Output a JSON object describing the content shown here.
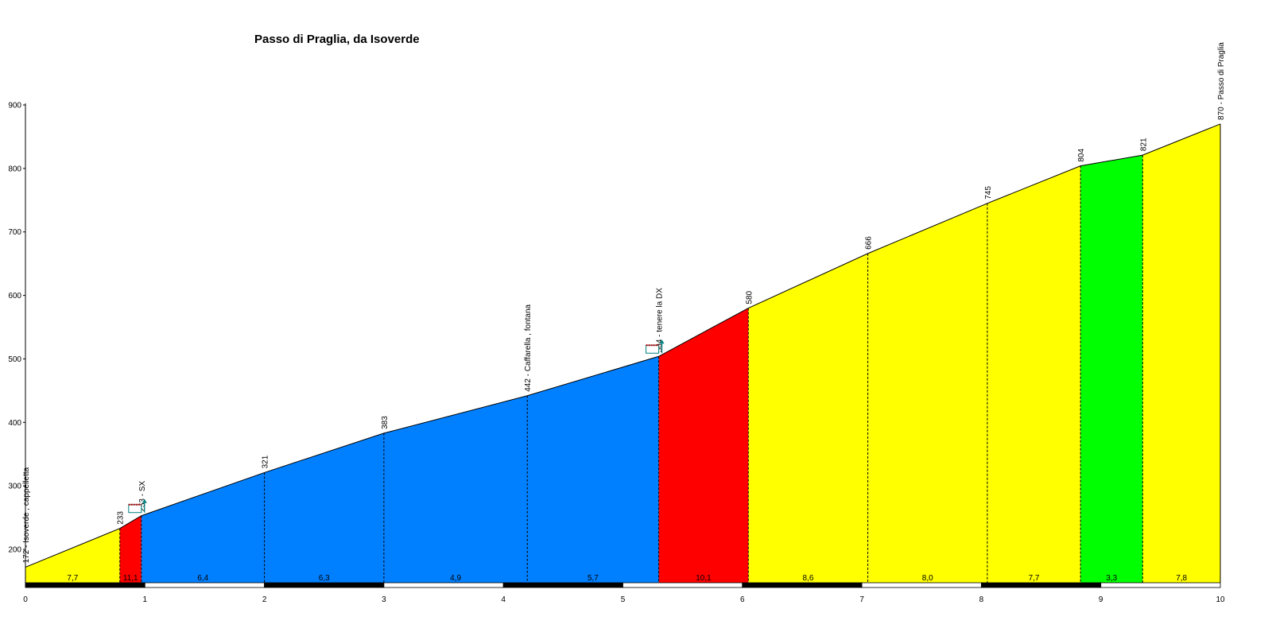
{
  "chart_data": {
    "type": "area",
    "title": "Passo di Praglia, da Isoverde",
    "xlabel": "",
    "ylabel": "",
    "xlim": [
      0,
      10
    ],
    "ylim": [
      160,
      900
    ],
    "x_ticks": [
      "0",
      "1",
      "2",
      "3",
      "4",
      "5",
      "6",
      "7",
      "8",
      "9",
      "10"
    ],
    "y_ticks": [
      "200",
      "300",
      "400",
      "500",
      "600",
      "700",
      "800",
      "900"
    ],
    "y_tick_values": [
      200,
      300,
      400,
      500,
      600,
      700,
      800,
      900
    ],
    "profile": [
      {
        "x": 0,
        "y": 172
      },
      {
        "x": 0.79,
        "y": 233
      },
      {
        "x": 0.97,
        "y": 253
      },
      {
        "x": 2.0,
        "y": 321
      },
      {
        "x": 3.0,
        "y": 383
      },
      {
        "x": 4.2,
        "y": 442
      },
      {
        "x": 5.3,
        "y": 504
      },
      {
        "x": 6.05,
        "y": 580
      },
      {
        "x": 7.05,
        "y": 666
      },
      {
        "x": 8.05,
        "y": 745
      },
      {
        "x": 8.83,
        "y": 804
      },
      {
        "x": 9.35,
        "y": 821
      },
      {
        "x": 10.0,
        "y": 870
      }
    ],
    "segments": [
      {
        "x0": 0,
        "x1": 0.79,
        "grade": "7,7",
        "color": "#ffff00"
      },
      {
        "x0": 0.79,
        "x1": 0.97,
        "grade": "11,1",
        "color": "#ff0000"
      },
      {
        "x0": 0.97,
        "x1": 2.0,
        "grade": "6,4",
        "color": "#0080ff"
      },
      {
        "x0": 2.0,
        "x1": 3.0,
        "grade": "6,3",
        "color": "#0080ff"
      },
      {
        "x0": 3.0,
        "x1": 4.2,
        "grade": "4,9",
        "color": "#0080ff"
      },
      {
        "x0": 4.2,
        "x1": 5.3,
        "grade": "5,7",
        "color": "#0080ff"
      },
      {
        "x0": 5.3,
        "x1": 6.05,
        "grade": "10,1",
        "color": "#ff0000"
      },
      {
        "x0": 6.05,
        "x1": 7.05,
        "grade": "8,6",
        "color": "#ffff00"
      },
      {
        "x0": 7.05,
        "x1": 8.05,
        "grade": "8,0",
        "color": "#ffff00"
      },
      {
        "x0": 8.05,
        "x1": 8.83,
        "grade": "7,7",
        "color": "#ffff00"
      },
      {
        "x0": 8.83,
        "x1": 9.35,
        "grade": "3,3",
        "color": "#00ff00"
      },
      {
        "x0": 9.35,
        "x1": 10.0,
        "grade": "7,8",
        "color": "#ffff00"
      }
    ],
    "point_labels": [
      {
        "x": 0,
        "y": 172,
        "text": "172 - Isoverde , cappelletta"
      },
      {
        "x": 0.79,
        "y": 233,
        "text": "233"
      },
      {
        "x": 0.97,
        "y": 253,
        "text": "253 - SX"
      },
      {
        "x": 2.0,
        "y": 321,
        "text": "321"
      },
      {
        "x": 3.0,
        "y": 383,
        "text": "383"
      },
      {
        "x": 4.2,
        "y": 442,
        "text": "442 - Caffarella , fontana"
      },
      {
        "x": 5.3,
        "y": 504,
        "text": "504 - tenere la DX"
      },
      {
        "x": 6.05,
        "y": 580,
        "text": "580"
      },
      {
        "x": 7.05,
        "y": 666,
        "text": "666"
      },
      {
        "x": 8.05,
        "y": 745,
        "text": "745"
      },
      {
        "x": 8.83,
        "y": 804,
        "text": "804"
      },
      {
        "x": 9.35,
        "y": 821,
        "text": "821"
      },
      {
        "x": 10.0,
        "y": 870,
        "text": "870 - Passo di Praglia"
      }
    ],
    "turn_icons": [
      {
        "x": 0.97,
        "y": 253,
        "direction": "left"
      },
      {
        "x": 5.3,
        "y": 504,
        "direction": "right"
      }
    ],
    "grid": false
  }
}
